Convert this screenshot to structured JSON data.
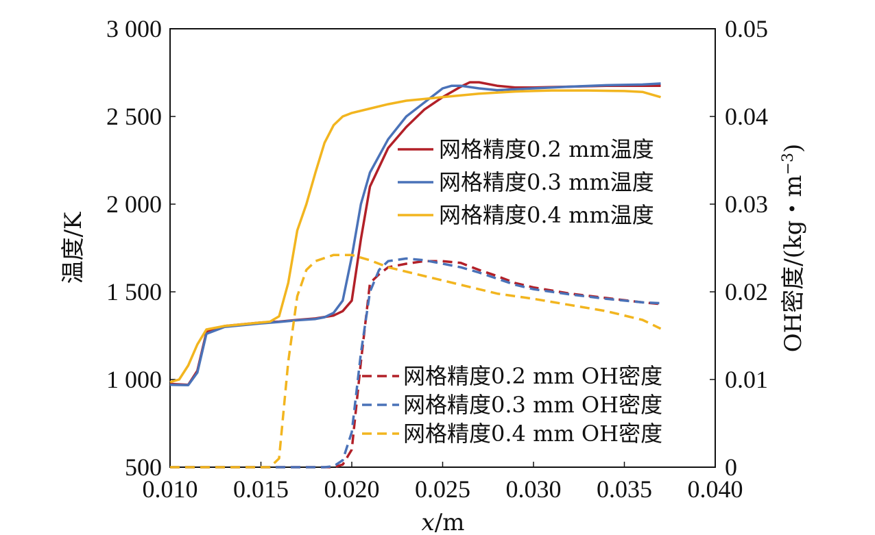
{
  "chart_data": {
    "type": "line",
    "xlabel_italic": "x",
    "xlabel_unit": "/m",
    "ylabel_left": "温度/K",
    "ylabel_right_main": "OH密度/(kg・m",
    "ylabel_right_exp": "−3",
    "ylabel_right_close": ")",
    "xlim": [
      0.01,
      0.04
    ],
    "ylim_left": [
      500,
      3000
    ],
    "ylim_right": [
      0,
      0.05
    ],
    "x_ticks": [
      "0.010",
      "0.015",
      "0.020",
      "0.025",
      "0.030",
      "0.035",
      "0.040"
    ],
    "x_tick_values": [
      0.01,
      0.015,
      0.02,
      0.025,
      0.03,
      0.035,
      0.04
    ],
    "y_left_ticks": [
      "500",
      "1 000",
      "1 500",
      "2 000",
      "2 500",
      "3 000"
    ],
    "y_left_tick_values": [
      500,
      1000,
      1500,
      2000,
      2500,
      3000
    ],
    "y_right_ticks": [
      "0",
      "0.01",
      "0.02",
      "0.03",
      "0.04",
      "0.05"
    ],
    "y_right_tick_values": [
      0,
      0.01,
      0.02,
      0.03,
      0.04,
      0.05
    ],
    "legend_temperature_placement": "upper-right",
    "legend_oh_placement": "lower-right",
    "grid": false,
    "series": [
      {
        "name": "网格精度0.2 mm温度",
        "axis": "left",
        "color": "#b22028",
        "dash": "solid",
        "points": [
          [
            0.01,
            975
          ],
          [
            0.011,
            970
          ],
          [
            0.0115,
            1050
          ],
          [
            0.012,
            1270
          ],
          [
            0.013,
            1305
          ],
          [
            0.015,
            1325
          ],
          [
            0.016,
            1330
          ],
          [
            0.017,
            1340
          ],
          [
            0.018,
            1348
          ],
          [
            0.019,
            1365
          ],
          [
            0.0195,
            1390
          ],
          [
            0.02,
            1450
          ],
          [
            0.0205,
            1800
          ],
          [
            0.021,
            2100
          ],
          [
            0.022,
            2320
          ],
          [
            0.023,
            2440
          ],
          [
            0.024,
            2540
          ],
          [
            0.025,
            2610
          ],
          [
            0.026,
            2670
          ],
          [
            0.0265,
            2695
          ],
          [
            0.027,
            2695
          ],
          [
            0.028,
            2675
          ],
          [
            0.029,
            2665
          ],
          [
            0.03,
            2665
          ],
          [
            0.032,
            2670
          ],
          [
            0.034,
            2675
          ],
          [
            0.036,
            2675
          ],
          [
            0.037,
            2675
          ]
        ]
      },
      {
        "name": "网格精度0.3 mm温度",
        "axis": "left",
        "color": "#4a72b8",
        "dash": "solid",
        "points": [
          [
            0.01,
            970
          ],
          [
            0.011,
            968
          ],
          [
            0.0115,
            1040
          ],
          [
            0.012,
            1260
          ],
          [
            0.013,
            1300
          ],
          [
            0.015,
            1320
          ],
          [
            0.016,
            1328
          ],
          [
            0.017,
            1338
          ],
          [
            0.018,
            1345
          ],
          [
            0.0185,
            1355
          ],
          [
            0.019,
            1380
          ],
          [
            0.0195,
            1450
          ],
          [
            0.02,
            1700
          ],
          [
            0.0205,
            2000
          ],
          [
            0.021,
            2180
          ],
          [
            0.022,
            2370
          ],
          [
            0.023,
            2500
          ],
          [
            0.024,
            2580
          ],
          [
            0.025,
            2660
          ],
          [
            0.0255,
            2675
          ],
          [
            0.026,
            2675
          ],
          [
            0.027,
            2660
          ],
          [
            0.028,
            2650
          ],
          [
            0.029,
            2655
          ],
          [
            0.03,
            2660
          ],
          [
            0.032,
            2670
          ],
          [
            0.034,
            2678
          ],
          [
            0.036,
            2682
          ],
          [
            0.037,
            2688
          ]
        ]
      },
      {
        "name": "网格精度0.4 mm温度",
        "axis": "left",
        "color": "#f2b51f",
        "dash": "solid",
        "points": [
          [
            0.01,
            985
          ],
          [
            0.0105,
            1000
          ],
          [
            0.011,
            1080
          ],
          [
            0.0115,
            1200
          ],
          [
            0.012,
            1285
          ],
          [
            0.013,
            1305
          ],
          [
            0.014,
            1315
          ],
          [
            0.015,
            1325
          ],
          [
            0.0155,
            1330
          ],
          [
            0.016,
            1360
          ],
          [
            0.0165,
            1550
          ],
          [
            0.017,
            1850
          ],
          [
            0.0175,
            2000
          ],
          [
            0.018,
            2180
          ],
          [
            0.0185,
            2350
          ],
          [
            0.019,
            2450
          ],
          [
            0.0195,
            2500
          ],
          [
            0.02,
            2520
          ],
          [
            0.021,
            2545
          ],
          [
            0.022,
            2570
          ],
          [
            0.023,
            2590
          ],
          [
            0.025,
            2610
          ],
          [
            0.027,
            2630
          ],
          [
            0.029,
            2642
          ],
          [
            0.031,
            2648
          ],
          [
            0.033,
            2648
          ],
          [
            0.035,
            2645
          ],
          [
            0.036,
            2640
          ],
          [
            0.037,
            2610
          ]
        ]
      },
      {
        "name": "网格精度0.2 mm OH密度",
        "axis": "right",
        "color": "#b22028",
        "dash": "dashed",
        "points": [
          [
            0.01,
            0
          ],
          [
            0.019,
            0
          ],
          [
            0.0195,
            0.0003
          ],
          [
            0.02,
            0.002
          ],
          [
            0.0205,
            0.012
          ],
          [
            0.021,
            0.021
          ],
          [
            0.0215,
            0.022
          ],
          [
            0.022,
            0.0228
          ],
          [
            0.023,
            0.0232
          ],
          [
            0.024,
            0.0235
          ],
          [
            0.025,
            0.0235
          ],
          [
            0.026,
            0.0233
          ],
          [
            0.027,
            0.0225
          ],
          [
            0.028,
            0.0218
          ],
          [
            0.029,
            0.021
          ],
          [
            0.03,
            0.0205
          ],
          [
            0.032,
            0.0198
          ],
          [
            0.034,
            0.0193
          ],
          [
            0.036,
            0.0188
          ],
          [
            0.037,
            0.0186
          ]
        ]
      },
      {
        "name": "网格精度0.3 mm OH密度",
        "axis": "right",
        "color": "#4a72b8",
        "dash": "dashed",
        "points": [
          [
            0.01,
            0
          ],
          [
            0.0185,
            0
          ],
          [
            0.019,
            0.0001
          ],
          [
            0.0195,
            0.0008
          ],
          [
            0.02,
            0.004
          ],
          [
            0.0205,
            0.013
          ],
          [
            0.021,
            0.02
          ],
          [
            0.0215,
            0.0225
          ],
          [
            0.022,
            0.0235
          ],
          [
            0.023,
            0.0238
          ],
          [
            0.024,
            0.0236
          ],
          [
            0.025,
            0.0232
          ],
          [
            0.026,
            0.0228
          ],
          [
            0.027,
            0.0222
          ],
          [
            0.028,
            0.0215
          ],
          [
            0.029,
            0.0208
          ],
          [
            0.03,
            0.0203
          ],
          [
            0.032,
            0.0197
          ],
          [
            0.034,
            0.0192
          ],
          [
            0.036,
            0.0188
          ],
          [
            0.037,
            0.0187
          ]
        ]
      },
      {
        "name": "网格精度0.4 mm OH密度",
        "axis": "right",
        "color": "#f2b51f",
        "dash": "dashed",
        "points": [
          [
            0.01,
            0
          ],
          [
            0.0155,
            0
          ],
          [
            0.016,
            0.001
          ],
          [
            0.0165,
            0.012
          ],
          [
            0.017,
            0.0195
          ],
          [
            0.0175,
            0.0225
          ],
          [
            0.018,
            0.0235
          ],
          [
            0.019,
            0.0242
          ],
          [
            0.02,
            0.0242
          ],
          [
            0.021,
            0.0236
          ],
          [
            0.022,
            0.0228
          ],
          [
            0.024,
            0.0218
          ],
          [
            0.026,
            0.0208
          ],
          [
            0.028,
            0.0198
          ],
          [
            0.03,
            0.0192
          ],
          [
            0.032,
            0.0185
          ],
          [
            0.034,
            0.0178
          ],
          [
            0.036,
            0.0168
          ],
          [
            0.037,
            0.0158
          ]
        ]
      }
    ]
  }
}
